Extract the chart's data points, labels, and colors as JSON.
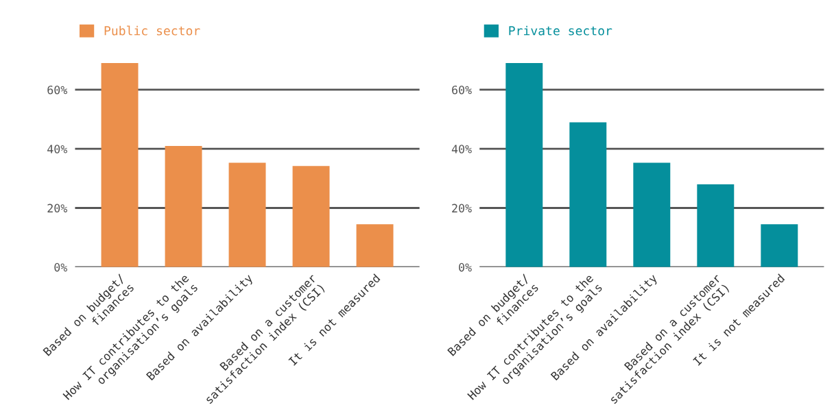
{
  "chart_data": [
    {
      "type": "bar",
      "categories": [
        "Based on budget/\nfinances",
        "How IT contributes to the\norganisation’s goals",
        "Based on availability",
        "Based on a customer\nsatisfaction index (CSI)",
        "It is not measured"
      ],
      "series": [
        {
          "name": "Public sector",
          "color": "#eb8f4b",
          "values": [
            69,
            41,
            35.3,
            34.2,
            14.5
          ]
        }
      ],
      "ylim": [
        0,
        69
      ],
      "yticks": [
        {
          "value": 0,
          "label": "0%"
        },
        {
          "value": 20,
          "label": "20%"
        },
        {
          "value": 40,
          "label": "40%"
        },
        {
          "value": 60,
          "label": "60%"
        }
      ],
      "grid": "y",
      "legend": "top left"
    },
    {
      "type": "bar",
      "categories": [
        "Based on budget/\nfinances",
        "How IT contributes to the\norganisation’s goals",
        "Based on availability",
        "Based on a customer\nsatisfaction index (CSI)",
        "It is not measured"
      ],
      "series": [
        {
          "name": "Private sector",
          "color": "#058f9c",
          "values": [
            69,
            49,
            35.3,
            28,
            14.5
          ]
        }
      ],
      "ylim": [
        0,
        69
      ],
      "yticks": [
        {
          "value": 0,
          "label": "0%"
        },
        {
          "value": 20,
          "label": "20%"
        },
        {
          "value": 40,
          "label": "40%"
        },
        {
          "value": 60,
          "label": "60%"
        }
      ],
      "grid": "y",
      "legend": "top left"
    }
  ]
}
